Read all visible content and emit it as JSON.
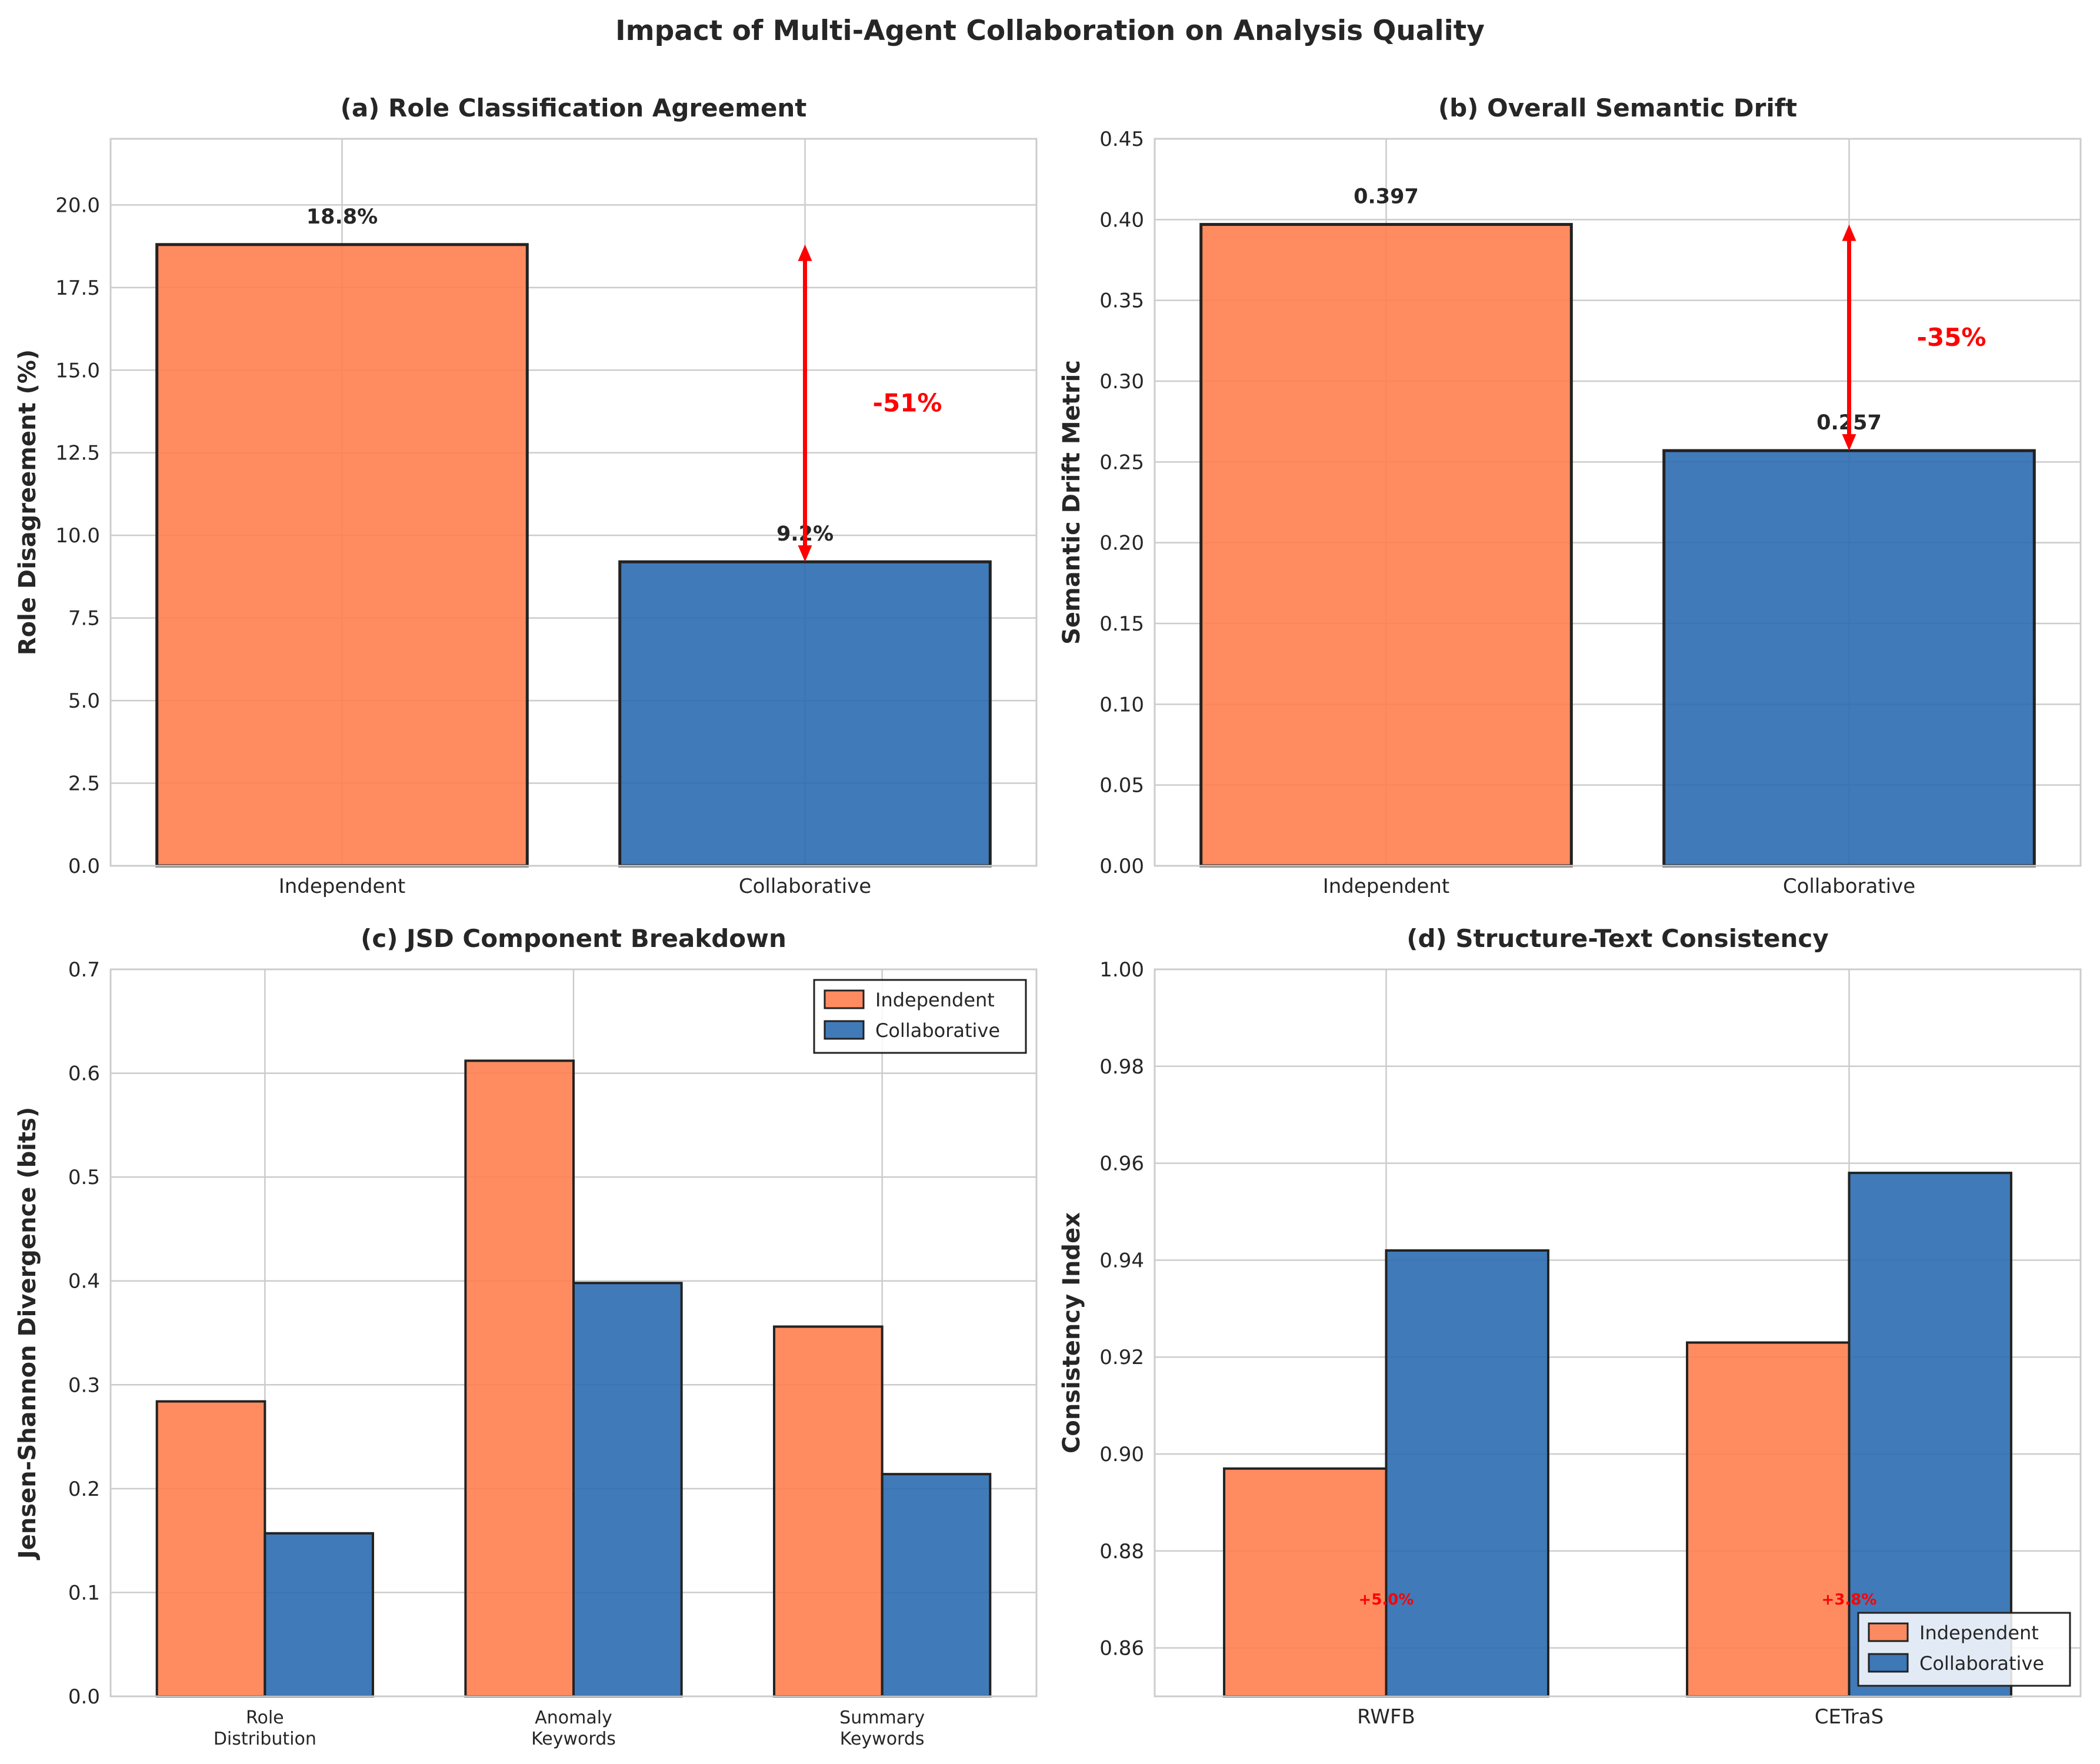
{
  "figure_title": "Impact of Multi-Agent Collaboration on Analysis Quality",
  "colors": {
    "independent": "#ff7f50",
    "collaborative": "#2b6cb0",
    "arrow": "#ff0000"
  },
  "chart_data": [
    {
      "type": "bar",
      "title": "(a) Role Classification Agreement",
      "ylabel": "Role Disagreement (%)",
      "categories": [
        "Independent",
        "Collaborative"
      ],
      "values": [
        18.8,
        9.2
      ],
      "value_labels": [
        "18.8%",
        "9.2%"
      ],
      "ylim": [
        0,
        22
      ],
      "yticks": [
        "0.0",
        "2.5",
        "5.0",
        "7.5",
        "10.0",
        "12.5",
        "15.0",
        "17.5",
        "20.0"
      ],
      "change_label": "-51%",
      "grid": true
    },
    {
      "type": "bar",
      "title": "(b) Overall Semantic Drift",
      "ylabel": "Semantic Drift Metric",
      "categories": [
        "Independent",
        "Collaborative"
      ],
      "values": [
        0.397,
        0.257
      ],
      "value_labels": [
        "0.397",
        "0.257"
      ],
      "ylim": [
        0,
        0.45
      ],
      "yticks": [
        "0.00",
        "0.05",
        "0.10",
        "0.15",
        "0.20",
        "0.25",
        "0.30",
        "0.35",
        "0.40",
        "0.45"
      ],
      "change_label": "-35%",
      "grid": true
    },
    {
      "type": "bar",
      "title": "(c) JSD Component Breakdown",
      "ylabel": "Jensen-Shannon Divergence (bits)",
      "categories": [
        "Role\nDistribution",
        "Anomaly\nKeywords",
        "Summary\nKeywords"
      ],
      "series": [
        {
          "name": "Independent",
          "values": [
            0.284,
            0.612,
            0.356
          ]
        },
        {
          "name": "Collaborative",
          "values": [
            0.157,
            0.398,
            0.214
          ]
        }
      ],
      "ylim": [
        0,
        0.7
      ],
      "yticks": [
        "0.0",
        "0.1",
        "0.2",
        "0.3",
        "0.4",
        "0.5",
        "0.6",
        "0.7"
      ],
      "legend": "top-right",
      "grid": true
    },
    {
      "type": "bar",
      "title": "(d) Structure-Text Consistency",
      "ylabel": "Consistency Index",
      "categories": [
        "RWFB",
        "CETraS"
      ],
      "series": [
        {
          "name": "Independent",
          "values": [
            0.897,
            0.923
          ]
        },
        {
          "name": "Collaborative",
          "values": [
            0.942,
            0.958
          ]
        }
      ],
      "improvement_labels": [
        "+5.0%",
        "+3.8%"
      ],
      "ylim": [
        0.85,
        1.0
      ],
      "yticks": [
        "0.86",
        "0.88",
        "0.90",
        "0.92",
        "0.94",
        "0.96",
        "0.98",
        "1.00"
      ],
      "legend": "bottom-right",
      "grid": true
    }
  ]
}
